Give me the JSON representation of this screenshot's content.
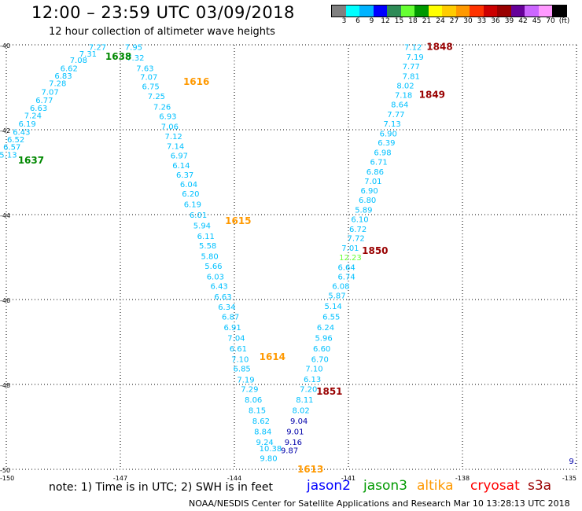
{
  "header": {
    "title": "12:00 – 23:59 UTC 03/09/2018",
    "subtitle": "12 hour collection of altimeter wave heights"
  },
  "colorbar": {
    "colors": [
      "#808080",
      "#00ffff",
      "#00b3ff",
      "#0000ff",
      "#2e8b57",
      "#66ff33",
      "#009900",
      "#ffff00",
      "#ffcc00",
      "#ff9900",
      "#ff3300",
      "#cc0000",
      "#990000",
      "#660099",
      "#cc66ff",
      "#ff99ff",
      "#000000"
    ],
    "labels": [
      "3",
      "6",
      "9",
      "12",
      "15",
      "18",
      "21",
      "24",
      "27",
      "30",
      "33",
      "36",
      "39",
      "42",
      "45",
      "70",
      "(ft)"
    ]
  },
  "chart_data": {
    "type": "scatter",
    "title": "12:00 – 23:59 UTC 03/09/2018",
    "subtitle": "12 hour collection of altimeter wave heights",
    "xlim": [
      -150,
      -135
    ],
    "ylim": [
      -50,
      -40
    ],
    "xticks": [
      "-150",
      "-147",
      "-144",
      "-141",
      "-138",
      "-135"
    ],
    "yticks": [
      "-40",
      "-42",
      "-44",
      "-46",
      "-48",
      "-50"
    ],
    "grid": "dotted",
    "passes": [
      {
        "satellite": "jason3",
        "color": "#00c0ff",
        "points": [
          {
            "lat": -40.05,
            "lon": -147.6,
            "v": "7.27"
          },
          {
            "lat": -40.2,
            "lon": -147.85,
            "v": "7.31"
          },
          {
            "lat": -40.35,
            "lon": -148.1,
            "v": "7.08"
          },
          {
            "lat": -40.55,
            "lon": -148.35,
            "v": "6.62"
          },
          {
            "lat": -40.72,
            "lon": -148.5,
            "v": "6.83"
          },
          {
            "lat": -40.9,
            "lon": -148.65,
            "v": "7.28"
          },
          {
            "lat": -41.1,
            "lon": -148.85,
            "v": "7.07"
          },
          {
            "lat": -41.3,
            "lon": -149.0,
            "v": "6.77"
          },
          {
            "lat": -41.48,
            "lon": -149.15,
            "v": "6.63"
          },
          {
            "lat": -41.66,
            "lon": -149.3,
            "v": "7.24"
          },
          {
            "lat": -41.85,
            "lon": -149.45,
            "v": "6.19"
          },
          {
            "lat": -42.05,
            "lon": -149.6,
            "v": "6.43"
          },
          {
            "lat": -42.22,
            "lon": -149.75,
            "v": "6.52"
          },
          {
            "lat": -42.4,
            "lon": -149.85,
            "v": "6.57"
          },
          {
            "lat": -42.58,
            "lon": -149.95,
            "v": "5.13"
          }
        ]
      },
      {
        "satellite": "altika",
        "color": "#00c0ff",
        "points": [
          {
            "lat": -40.05,
            "lon": -146.65,
            "v": "7.95"
          },
          {
            "lat": -40.3,
            "lon": -146.6,
            "v": "7.32"
          },
          {
            "lat": -40.55,
            "lon": -146.35,
            "v": "7.63"
          },
          {
            "lat": -40.75,
            "lon": -146.25,
            "v": "7.07"
          },
          {
            "lat": -40.97,
            "lon": -146.2,
            "v": "6.75"
          },
          {
            "lat": -41.2,
            "lon": -146.05,
            "v": "7.25"
          },
          {
            "lat": -41.45,
            "lon": -145.9,
            "v": "7.26"
          },
          {
            "lat": -41.68,
            "lon": -145.75,
            "v": "6.93"
          },
          {
            "lat": -41.92,
            "lon": -145.7,
            "v": "7.06"
          },
          {
            "lat": -42.15,
            "lon": -145.6,
            "v": "7.12"
          },
          {
            "lat": -42.38,
            "lon": -145.55,
            "v": "7.14"
          },
          {
            "lat": -42.6,
            "lon": -145.45,
            "v": "6.97"
          },
          {
            "lat": -42.83,
            "lon": -145.4,
            "v": "6.14"
          },
          {
            "lat": -43.06,
            "lon": -145.3,
            "v": "6.37"
          },
          {
            "lat": -43.28,
            "lon": -145.2,
            "v": "6.04"
          },
          {
            "lat": -43.5,
            "lon": -145.15,
            "v": "6.20"
          },
          {
            "lat": -43.75,
            "lon": -145.1,
            "v": "6.19"
          },
          {
            "lat": -44.0,
            "lon": -144.95,
            "v": "6.01"
          },
          {
            "lat": -44.25,
            "lon": -144.85,
            "v": "5.94"
          },
          {
            "lat": -44.5,
            "lon": -144.75,
            "v": "6.11"
          },
          {
            "lat": -44.72,
            "lon": -144.7,
            "v": "5.58"
          },
          {
            "lat": -44.97,
            "lon": -144.65,
            "v": "5.80"
          },
          {
            "lat": -45.2,
            "lon": -144.55,
            "v": "5.66"
          },
          {
            "lat": -45.45,
            "lon": -144.5,
            "v": "6.03"
          },
          {
            "lat": -45.68,
            "lon": -144.4,
            "v": "6.43"
          },
          {
            "lat": -45.93,
            "lon": -144.3,
            "v": "6.63"
          },
          {
            "lat": -46.17,
            "lon": -144.2,
            "v": "6.34"
          },
          {
            "lat": -46.4,
            "lon": -144.1,
            "v": "6.87"
          },
          {
            "lat": -46.65,
            "lon": -144.05,
            "v": "6.91"
          },
          {
            "lat": -46.9,
            "lon": -143.95,
            "v": "7.04"
          },
          {
            "lat": -47.15,
            "lon": -143.9,
            "v": "6.61"
          },
          {
            "lat": -47.4,
            "lon": -143.85,
            "v": "7.10"
          },
          {
            "lat": -47.62,
            "lon": -143.8,
            "v": "6.85"
          },
          {
            "lat": -47.88,
            "lon": -143.7,
            "v": "7.19"
          },
          {
            "lat": -48.1,
            "lon": -143.6,
            "v": "7.29"
          },
          {
            "lat": -48.35,
            "lon": -143.5,
            "v": "8.06"
          },
          {
            "lat": -48.6,
            "lon": -143.4,
            "v": "8.15"
          },
          {
            "lat": -48.85,
            "lon": -143.3,
            "v": "8.62"
          },
          {
            "lat": -49.1,
            "lon": -143.25,
            "v": "8.84"
          },
          {
            "lat": -49.35,
            "lon": -143.2,
            "v": "9.24"
          },
          {
            "lat": -49.5,
            "lon": -143.05,
            "v": "10.38"
          },
          {
            "lat": -49.73,
            "lon": -143.1,
            "v": "9.80"
          }
        ]
      },
      {
        "satellite": "cryosat",
        "color": "#00c0ff",
        "points": [
          {
            "lat": -40.05,
            "lon": -139.3,
            "v": "7.12"
          },
          {
            "lat": -40.28,
            "lon": -139.25,
            "v": "7.19"
          },
          {
            "lat": -40.5,
            "lon": -139.35,
            "v": "7.77"
          },
          {
            "lat": -40.73,
            "lon": -139.35,
            "v": "7.81"
          },
          {
            "lat": -40.95,
            "lon": -139.5,
            "v": "8.02"
          },
          {
            "lat": -41.18,
            "lon": -139.55,
            "v": "7.18"
          },
          {
            "lat": -41.4,
            "lon": -139.65,
            "v": "8.64"
          },
          {
            "lat": -41.63,
            "lon": -139.75,
            "v": "7.77"
          },
          {
            "lat": -41.85,
            "lon": -139.85,
            "v": "7.13"
          },
          {
            "lat": -42.08,
            "lon": -139.95,
            "v": "6.90"
          },
          {
            "lat": -42.3,
            "lon": -140.0,
            "v": "6.39"
          },
          {
            "lat": -42.53,
            "lon": -140.1,
            "v": "6.98"
          },
          {
            "lat": -42.75,
            "lon": -140.2,
            "v": "6.71"
          },
          {
            "lat": -42.98,
            "lon": -140.3,
            "v": "6.86"
          },
          {
            "lat": -43.2,
            "lon": -140.35,
            "v": "7.01"
          },
          {
            "lat": -43.43,
            "lon": -140.45,
            "v": "6.90"
          },
          {
            "lat": -43.65,
            "lon": -140.5,
            "v": "6.80"
          },
          {
            "lat": -43.88,
            "lon": -140.6,
            "v": "5.89"
          },
          {
            "lat": -44.1,
            "lon": -140.7,
            "v": "6.10"
          },
          {
            "lat": -44.33,
            "lon": -140.75,
            "v": "6.72"
          },
          {
            "lat": -44.55,
            "lon": -140.8,
            "v": "7.72"
          },
          {
            "lat": -44.78,
            "lon": -140.95,
            "v": "7.01"
          },
          {
            "lat": -45.0,
            "lon": -140.95,
            "v": "12.23",
            "color": "#66ff33"
          },
          {
            "lat": -45.23,
            "lon": -141.05,
            "v": "6.64"
          },
          {
            "lat": -45.45,
            "lon": -141.05,
            "v": "6.74"
          },
          {
            "lat": -45.68,
            "lon": -141.2,
            "v": "6.08"
          },
          {
            "lat": -45.9,
            "lon": -141.3,
            "v": "5.87"
          },
          {
            "lat": -46.15,
            "lon": -141.4,
            "v": "5.14"
          },
          {
            "lat": -46.4,
            "lon": -141.45,
            "v": "6.55"
          },
          {
            "lat": -46.65,
            "lon": -141.6,
            "v": "6.24"
          },
          {
            "lat": -46.9,
            "lon": -141.65,
            "v": "5.96"
          },
          {
            "lat": -47.15,
            "lon": -141.7,
            "v": "6.60"
          },
          {
            "lat": -47.4,
            "lon": -141.75,
            "v": "6.70"
          },
          {
            "lat": -47.62,
            "lon": -141.9,
            "v": "7.10"
          },
          {
            "lat": -47.87,
            "lon": -141.95,
            "v": "6.13"
          },
          {
            "lat": -48.1,
            "lon": -142.05,
            "v": "7.20"
          },
          {
            "lat": -48.35,
            "lon": -142.15,
            "v": "8.11"
          },
          {
            "lat": -48.6,
            "lon": -142.25,
            "v": "8.02"
          },
          {
            "lat": -48.85,
            "lon": -142.3,
            "v": "9.04",
            "color": "#0000aa"
          },
          {
            "lat": -49.1,
            "lon": -142.4,
            "v": "9.01",
            "color": "#0000aa"
          },
          {
            "lat": -49.35,
            "lon": -142.45,
            "v": "9.16",
            "color": "#0000aa"
          },
          {
            "lat": -49.55,
            "lon": -142.55,
            "v": "9.87",
            "color": "#0000aa"
          }
        ]
      }
    ],
    "time_labels": [
      {
        "lat": -40.28,
        "lon": -147.05,
        "t": "1638",
        "color": "#008800"
      },
      {
        "lat": -42.72,
        "lon": -149.35,
        "t": "1637",
        "color": "#008800"
      },
      {
        "lat": -40.87,
        "lon": -145.0,
        "t": "1616",
        "color": "#ff9900"
      },
      {
        "lat": -44.15,
        "lon": -143.9,
        "t": "1615",
        "color": "#ff9900"
      },
      {
        "lat": -47.35,
        "lon": -143.0,
        "t": "1614",
        "color": "#ff9900"
      },
      {
        "lat": -50.0,
        "lon": -142.0,
        "t": "1613",
        "color": "#ff9900"
      },
      {
        "lat": -40.05,
        "lon": -138.6,
        "t": "1848",
        "color": "#990000"
      },
      {
        "lat": -41.18,
        "lon": -138.8,
        "t": "1849",
        "color": "#990000"
      },
      {
        "lat": -44.85,
        "lon": -140.3,
        "t": "1850",
        "color": "#990000"
      },
      {
        "lat": -48.17,
        "lon": -141.5,
        "t": "1851",
        "color": "#990000"
      }
    ],
    "edge_labels": [
      {
        "lat": -49.8,
        "lon": -135.1,
        "t": "9.",
        "color": "#0000aa"
      }
    ]
  },
  "footer": {
    "note": "note: 1) Time is in UTC; 2) SWH is in feet",
    "satellites": [
      {
        "name": "jason2",
        "color": "#0000ff"
      },
      {
        "name": "jason3",
        "color": "#009900"
      },
      {
        "name": "altika",
        "color": "#ff9900"
      },
      {
        "name": "cryosat",
        "color": "#ff0000"
      },
      {
        "name": "s3a",
        "color": "#990000"
      }
    ],
    "credit": "NOAA/NESDIS Center for Satellite Applications and Research    Mar 10 13:28:13 UTC 2018"
  }
}
